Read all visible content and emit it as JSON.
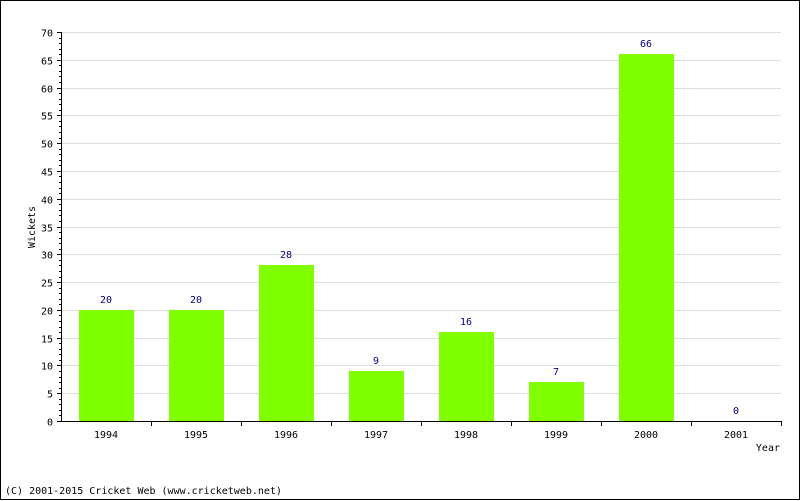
{
  "chart_data": {
    "type": "bar",
    "title": "",
    "xlabel": "Year",
    "ylabel": "Wickets",
    "categories": [
      "1994",
      "1995",
      "1996",
      "1997",
      "1998",
      "1999",
      "2000",
      "2001"
    ],
    "values": [
      20,
      20,
      28,
      9,
      16,
      7,
      66,
      0
    ],
    "ylim": [
      0,
      70
    ],
    "yticks": [
      0,
      5,
      10,
      15,
      20,
      25,
      30,
      35,
      40,
      45,
      50,
      55,
      60,
      65,
      70
    ],
    "grid": true,
    "bar_color": "#7fff00",
    "label_color": "#000080"
  },
  "footer": {
    "copyright": "(C) 2001-2015 Cricket Web (www.cricketweb.net)"
  }
}
